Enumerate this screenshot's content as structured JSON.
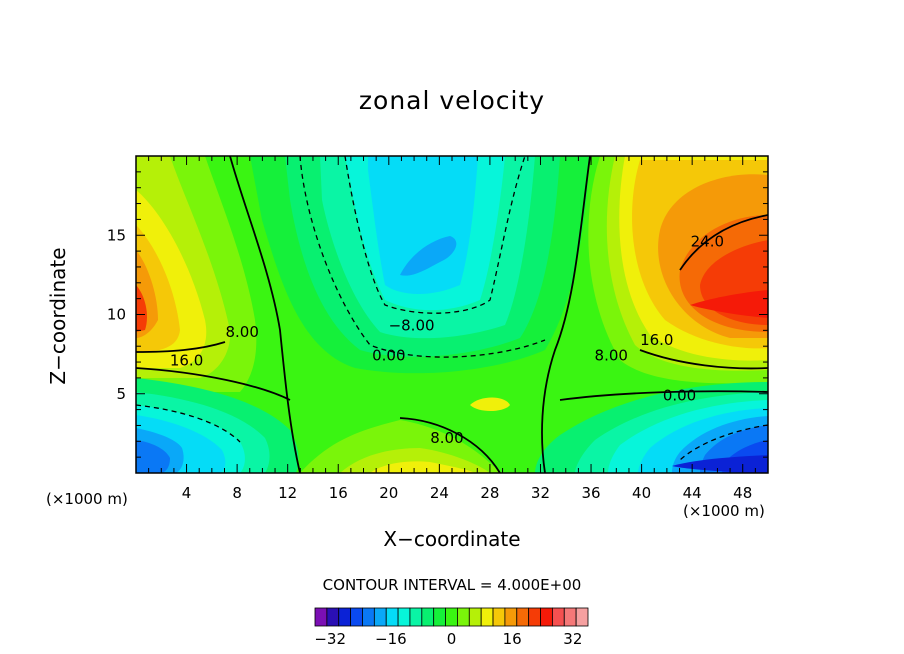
{
  "chart_data": {
    "type": "heatmap",
    "subtype": "filled-contour",
    "title": "zonal velocity",
    "xlabel": "X−coordinate",
    "ylabel": "Z−coordinate",
    "x_unit_label": "(×1000 m)",
    "xlim": [
      0,
      50
    ],
    "ylim": [
      0,
      20
    ],
    "x_ticks": [
      4,
      8,
      12,
      16,
      20,
      24,
      28,
      32,
      36,
      40,
      44,
      48
    ],
    "y_ticks": [
      5,
      10,
      15
    ],
    "contour_interval_text": "CONTOUR INTERVAL = 4.000E+00",
    "contour_interval": 4,
    "grid": false,
    "colorbar": {
      "levels_min": -36,
      "levels_max": 36,
      "step": 4,
      "tick_labels": [
        "−32",
        "−16",
        "0",
        "16",
        "32"
      ],
      "tick_values": [
        -32,
        -16,
        0,
        16,
        32
      ],
      "colors": [
        "#7b0fb4",
        "#2a0fb4",
        "#0b22d6",
        "#0a4af0",
        "#0a78f5",
        "#0aa8f8",
        "#05dcf7",
        "#07f5da",
        "#0af5a5",
        "#08f070",
        "#15f03a",
        "#3af512",
        "#7af50a",
        "#b5f008",
        "#f0f00a",
        "#f5c808",
        "#f59a08",
        "#f56a06",
        "#f53c06",
        "#f51a08",
        "#f55050",
        "#f57878",
        "#f5a0a0"
      ]
    },
    "labelled_contours": [
      {
        "text": "24.0",
        "x": 45.2,
        "y": 14.6
      },
      {
        "text": "16.0",
        "x": 41.2,
        "y": 8.4
      },
      {
        "text": "16.0",
        "x": 4.0,
        "y": 7.1
      },
      {
        "text": "8.00",
        "x": 8.4,
        "y": 8.9
      },
      {
        "text": "8.00",
        "x": 37.6,
        "y": 7.4
      },
      {
        "text": "8.00",
        "x": 24.6,
        "y": 2.2
      },
      {
        "text": "−8.00",
        "x": 21.8,
        "y": 9.3
      },
      {
        "text": "0.00",
        "x": 20.0,
        "y": 7.4
      },
      {
        "text": "0.00",
        "x": 43.0,
        "y": 4.9
      }
    ]
  }
}
